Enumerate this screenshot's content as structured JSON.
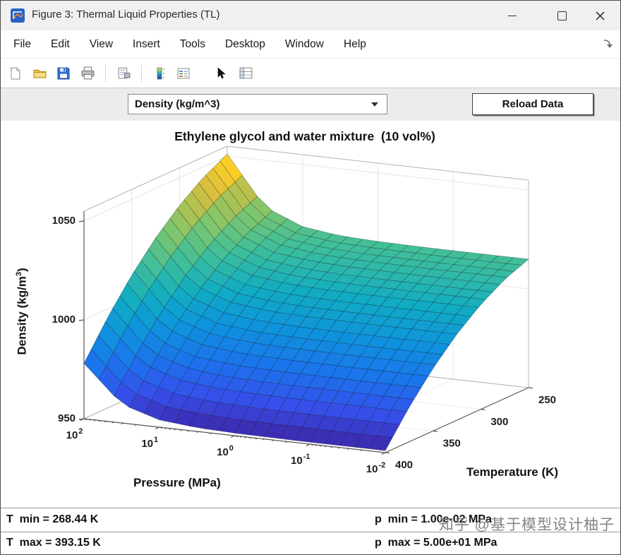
{
  "window": {
    "title": "Figure 3: Thermal Liquid Properties (TL)"
  },
  "menu": {
    "items": [
      "File",
      "Edit",
      "View",
      "Insert",
      "Tools",
      "Desktop",
      "Window",
      "Help"
    ]
  },
  "controls": {
    "dropdown_value": "Density (kg/m^3)",
    "reload_button": "Reload Data"
  },
  "status": {
    "t_min": "T  min = 268.44 K",
    "t_max": "T  max = 393.15 K",
    "p_min": "p  min = 1.00e-02 MPa",
    "p_max": "p  max = 5.00e+01 MPa"
  },
  "watermark": "知乎 @基于模型设计柚子",
  "chart_data": {
    "type": "surface",
    "title": "Ethylene glycol and water mixture  (10 vol%)",
    "xlabel": "Pressure (MPa)",
    "ylabel": "Temperature (K)",
    "zlabel": "Density (kg/m^3)",
    "x_scale": "log",
    "xlim_log10": [
      -2,
      2
    ],
    "ylim": [
      250,
      400
    ],
    "zlim": [
      950,
      1055
    ],
    "x_ticks": [
      {
        "exp": 2,
        "label": "10^{2}"
      },
      {
        "exp": 1,
        "label": "10^{1}"
      },
      {
        "exp": 0,
        "label": "10^{0}"
      },
      {
        "exp": -1,
        "label": "10^{-1}"
      },
      {
        "exp": -2,
        "label": "10^{-2}"
      }
    ],
    "y_ticks": [
      250,
      300,
      350,
      400
    ],
    "z_ticks": [
      950,
      1000,
      1050
    ],
    "colormap": "parula",
    "grid": true,
    "log10_pressure": [
      -2,
      -1.5,
      -1,
      -0.5,
      0,
      0.5,
      1,
      1.5,
      2
    ],
    "temperature": [
      250,
      275,
      300,
      325,
      350,
      375,
      400
    ],
    "density": [
      [
        1015.0,
        1015.0,
        1015.0,
        1015.1,
        1015.4,
        1016.1,
        1018.6,
        1026.4,
        1051.0
      ],
      [
        1010.2,
        1010.2,
        1010.2,
        1010.3,
        1010.5,
        1011.3,
        1013.6,
        1021.1,
        1044.7
      ],
      [
        1003.0,
        1003.0,
        1003.0,
        1003.1,
        1003.3,
        1004.0,
        1006.3,
        1013.4,
        1036.0
      ],
      [
        993.5,
        993.5,
        993.5,
        993.6,
        993.8,
        994.5,
        996.7,
        1003.5,
        1025.0
      ],
      [
        981.7,
        981.7,
        981.7,
        981.8,
        982.0,
        982.6,
        984.7,
        991.2,
        1011.7
      ],
      [
        967.5,
        967.5,
        967.5,
        967.6,
        967.8,
        968.4,
        970.4,
        976.5,
        996.0
      ],
      [
        951.0,
        951.0,
        951.0,
        951.1,
        951.3,
        951.9,
        953.7,
        959.5,
        978.0
      ]
    ]
  }
}
